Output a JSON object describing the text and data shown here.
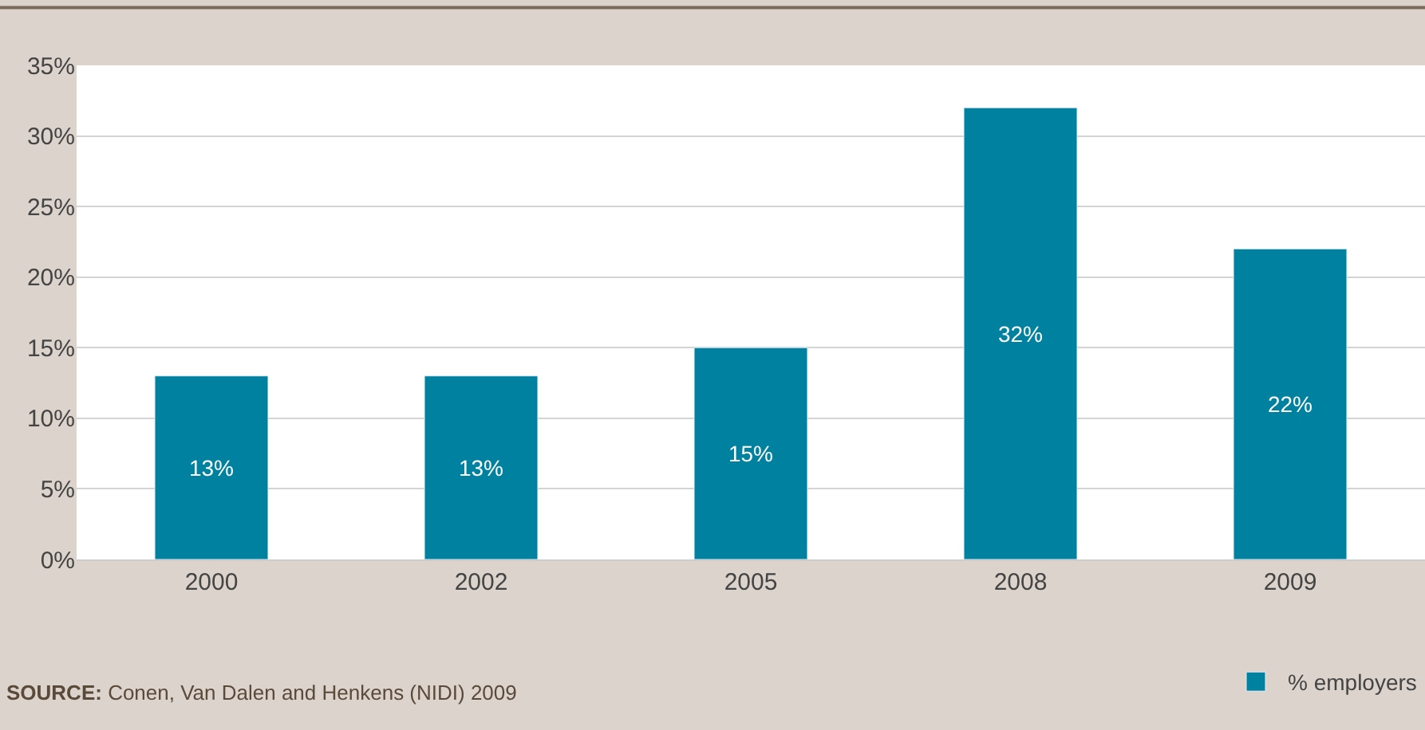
{
  "chart_data": {
    "type": "bar",
    "categories": [
      "2000",
      "2002",
      "2005",
      "2008",
      "2009"
    ],
    "series": [
      {
        "name": "% employers",
        "color": "#00819f",
        "values": [
          13,
          13,
          15,
          32,
          22
        ],
        "value_labels": [
          "13%",
          "13%",
          "15%",
          "32%",
          "22%"
        ]
      }
    ],
    "ylim": [
      0,
      35
    ],
    "yticks": [
      {
        "value": 0,
        "label": "0%"
      },
      {
        "value": 5,
        "label": "5%"
      },
      {
        "value": 10,
        "label": "10%"
      },
      {
        "value": 15,
        "label": "15%"
      },
      {
        "value": 20,
        "label": "20%"
      },
      {
        "value": 25,
        "label": "25%"
      },
      {
        "value": 30,
        "label": "30%"
      },
      {
        "value": 35,
        "label": "35%"
      }
    ],
    "grid": "y",
    "legend": "bottom right",
    "annotations": [
      "SOURCE: Conen, Van Dalen and Henkens (NIDI) 2009"
    ]
  }
}
